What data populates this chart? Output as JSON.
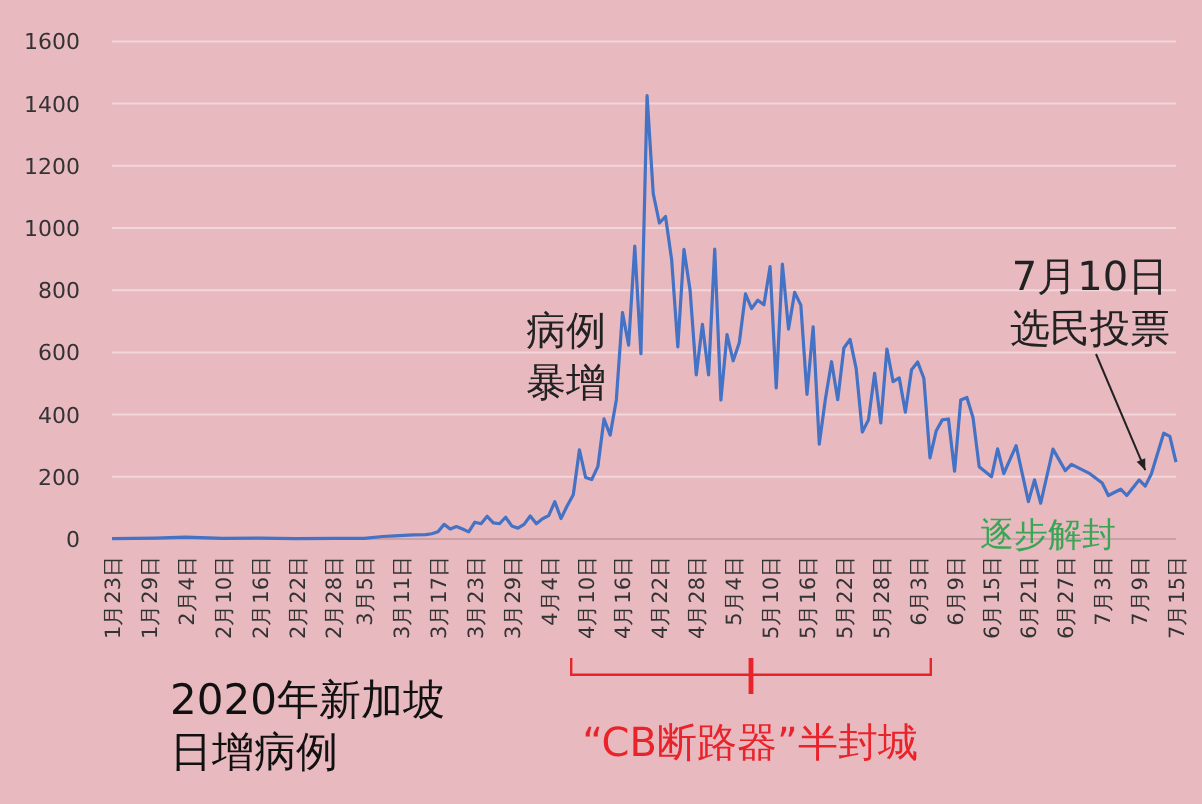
{
  "chart_data": {
    "type": "line",
    "title": "2020年新加坡日增病例",
    "x": [
      "--01-23",
      "--01-30",
      "--02-04",
      "--02-10",
      "--02-16",
      "--02-22",
      "--02-28",
      "--03-03",
      "--03-05",
      "--03-08",
      "--03-10",
      "--03-13",
      "--03-15",
      "--03-16",
      "--03-17",
      "--03-18",
      "--03-19",
      "--03-20",
      "--03-21",
      "--03-22",
      "--03-23",
      "--03-24",
      "--03-25",
      "--03-26",
      "--03-27",
      "--03-28",
      "--03-29",
      "--03-30",
      "--03-31",
      "--04-01",
      "--04-02",
      "--04-03",
      "--04-04",
      "--04-05",
      "--04-06",
      "--04-07",
      "--04-08",
      "--04-09",
      "--04-10",
      "--04-11",
      "--04-12",
      "--04-13",
      "--04-14",
      "--04-15",
      "--04-16",
      "--04-17",
      "--04-18",
      "--04-19",
      "--04-20",
      "--04-21",
      "--04-22",
      "--04-23",
      "--04-24",
      "--04-25",
      "--04-26",
      "--04-27",
      "--04-28",
      "--04-29",
      "--04-30",
      "--05-01",
      "--05-02",
      "--05-03",
      "--05-04",
      "--05-05",
      "--05-06",
      "--05-07",
      "--05-08",
      "--05-09",
      "--05-10",
      "--05-11",
      "--05-12",
      "--05-13",
      "--05-14",
      "--05-15",
      "--05-16",
      "--05-17",
      "--05-18",
      "--05-19",
      "--05-20",
      "--05-21",
      "--05-22",
      "--05-23",
      "--05-24",
      "--05-25",
      "--05-26",
      "--05-27",
      "--05-28",
      "--05-29",
      "--05-30",
      "--05-31",
      "--06-01",
      "--06-02",
      "--06-03",
      "--06-04",
      "--06-05",
      "--06-06",
      "--06-07",
      "--06-08",
      "--06-09",
      "--06-10",
      "--06-11",
      "--06-12",
      "--06-13",
      "--06-15",
      "--06-16",
      "--06-17",
      "--06-19",
      "--06-21",
      "--06-22",
      "--06-23",
      "--06-25",
      "--06-27",
      "--06-28",
      "--07-01",
      "--07-03",
      "--07-04",
      "--07-06",
      "--07-07",
      "--07-09",
      "--07-10",
      "--07-11",
      "--07-13",
      "--07-14",
      "--07-15"
    ],
    "series": [
      {
        "color": "#4472c4",
        "values": [
          1,
          3,
          6,
          2,
          3,
          1,
          2,
          2,
          2,
          8,
          10,
          13,
          14,
          17,
          23,
          47,
          32,
          40,
          32,
          23,
          54,
          49,
          73,
          52,
          49,
          70,
          42,
          35,
          47,
          74,
          49,
          65,
          75,
          120,
          66,
          106,
          142,
          287,
          198,
          191,
          233,
          386,
          334,
          447,
          728,
          623,
          942,
          596,
          1426,
          1111,
          1016,
          1037,
          897,
          618,
          931,
          799,
          528,
          690,
          528,
          932,
          447,
          657,
          573,
          632,
          788,
          741,
          768,
          753,
          876,
          486,
          884,
          675,
          793,
          752,
          465,
          682,
          305,
          451,
          570,
          448,
          614,
          642,
          548,
          344,
          383,
          533,
          373,
          611,
          506,
          518,
          408,
          544,
          569,
          517,
          261,
          347,
          383,
          386,
          218,
          447,
          455,
          390,
          232,
          200,
          290,
          210,
          300,
          120,
          190,
          115,
          289,
          220,
          240,
          210,
          180,
          140,
          160,
          140,
          190,
          170,
          210,
          340,
          330,
          247
        ]
      }
    ],
    "xlim": [
      "--01-23",
      "--07-15"
    ],
    "xticks": [
      {
        "value": "--01-23",
        "label": "1月23日"
      },
      {
        "value": "--01-29",
        "label": "1月29日"
      },
      {
        "value": "--02-04",
        "label": "2月4日"
      },
      {
        "value": "--02-10",
        "label": "2月10日"
      },
      {
        "value": "--02-16",
        "label": "2月16日"
      },
      {
        "value": "--02-22",
        "label": "2月22日"
      },
      {
        "value": "--02-28",
        "label": "2月28日"
      },
      {
        "value": "--03-05",
        "label": "3月5日"
      },
      {
        "value": "--03-11",
        "label": "3月11日"
      },
      {
        "value": "--03-17",
        "label": "3月17日"
      },
      {
        "value": "--03-23",
        "label": "3月23日"
      },
      {
        "value": "--03-29",
        "label": "3月29日"
      },
      {
        "value": "--04-04",
        "label": "4月4日"
      },
      {
        "value": "--04-10",
        "label": "4月10日"
      },
      {
        "value": "--04-16",
        "label": "4月16日"
      },
      {
        "value": "--04-22",
        "label": "4月22日"
      },
      {
        "value": "--04-28",
        "label": "4月28日"
      },
      {
        "value": "--05-04",
        "label": "5月4日"
      },
      {
        "value": "--05-10",
        "label": "5月10日"
      },
      {
        "value": "--05-16",
        "label": "5月16日"
      },
      {
        "value": "--05-22",
        "label": "5月22日"
      },
      {
        "value": "--05-28",
        "label": "5月28日"
      },
      {
        "value": "--06-03",
        "label": "6月3日"
      },
      {
        "value": "--06-09",
        "label": "6月9日"
      },
      {
        "value": "--06-15",
        "label": "6月15日"
      },
      {
        "value": "--06-21",
        "label": "6月21日"
      },
      {
        "value": "--06-27",
        "label": "6月27日"
      },
      {
        "value": "--07-03",
        "label": "7月3日"
      },
      {
        "value": "--07-09",
        "label": "7月9日"
      },
      {
        "value": "--07-15",
        "label": "7月15日"
      }
    ],
    "ylim": [
      0,
      1600
    ],
    "yticks": [
      0,
      200,
      400,
      600,
      800,
      1000,
      1200,
      1400,
      1600
    ],
    "grid": "y",
    "marker": "none",
    "line_style": "solid",
    "annotations": [
      "病例暴增",
      {
        "text": "7月10日选民投票",
        "x": "--07-10",
        "y": 170
      },
      "逐步解封",
      "“CB断路器”半封城"
    ]
  }
}
